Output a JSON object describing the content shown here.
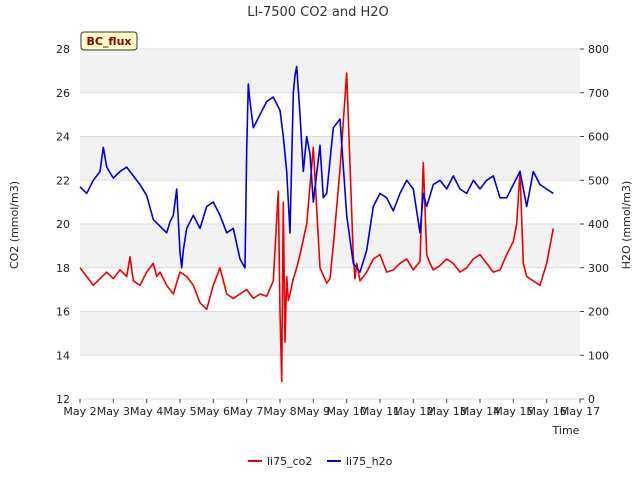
{
  "chart_data": {
    "type": "line",
    "title": "LI-7500 CO2 and H2O",
    "tag": "BC_flux",
    "xlabel": "Time",
    "ylabel_left": "CO2 (mmol/m3)",
    "ylabel_right": "H2O (mmol/m3)",
    "x_ticks": [
      "May 2",
      "May 3",
      "May 4",
      "May 5",
      "May 6",
      "May 7",
      "May 8",
      "May 9",
      "May 10",
      "May 11",
      "May 12",
      "May 13",
      "May 14",
      "May 15",
      "May 16",
      "May 17"
    ],
    "ylim_left": [
      12,
      28
    ],
    "yticks_left": [
      12,
      14,
      16,
      18,
      20,
      22,
      24,
      26,
      28
    ],
    "ylim_right": [
      0,
      800
    ],
    "yticks_right": [
      0,
      100,
      200,
      300,
      400,
      500,
      600,
      700,
      800
    ],
    "grid": true,
    "legend_position": "bottom-center",
    "series": [
      {
        "name": "li75_co2",
        "axis": "left",
        "color": "#ee0000",
        "x": [
          2.0,
          2.2,
          2.4,
          2.6,
          2.8,
          3.0,
          3.2,
          3.4,
          3.5,
          3.6,
          3.8,
          4.0,
          4.2,
          4.3,
          4.4,
          4.6,
          4.8,
          5.0,
          5.2,
          5.4,
          5.6,
          5.8,
          6.0,
          6.2,
          6.4,
          6.6,
          6.8,
          7.0,
          7.2,
          7.4,
          7.6,
          7.8,
          7.95,
          8.0,
          8.05,
          8.1,
          8.15,
          8.2,
          8.25,
          8.3,
          8.4,
          8.5,
          8.6,
          8.8,
          9.0,
          9.2,
          9.4,
          9.5,
          9.6,
          9.8,
          10.0,
          10.2,
          10.25,
          10.3,
          10.4,
          10.6,
          10.8,
          11.0,
          11.2,
          11.4,
          11.6,
          11.8,
          12.0,
          12.2,
          12.3,
          12.4,
          12.5,
          12.6,
          12.8,
          13.0,
          13.2,
          13.4,
          13.6,
          13.8,
          14.0,
          14.2,
          14.4,
          14.6,
          14.8,
          15.0,
          15.1,
          15.2,
          15.3,
          15.4,
          15.6,
          15.8,
          16.0,
          16.2
        ],
        "values": [
          18.0,
          17.6,
          17.2,
          17.5,
          17.8,
          17.5,
          17.9,
          17.6,
          18.5,
          17.4,
          17.2,
          17.8,
          18.2,
          17.6,
          17.8,
          17.2,
          16.8,
          17.8,
          17.6,
          17.2,
          16.4,
          16.1,
          17.2,
          18.0,
          16.8,
          16.6,
          16.8,
          17.0,
          16.6,
          16.8,
          16.7,
          17.4,
          21.5,
          16.0,
          12.8,
          21.0,
          14.6,
          17.6,
          16.5,
          16.8,
          17.5,
          18.0,
          18.6,
          20.0,
          23.5,
          18.0,
          17.3,
          17.5,
          19.0,
          22.5,
          26.9,
          18.5,
          17.5,
          18.2,
          17.4,
          17.8,
          18.4,
          18.6,
          17.8,
          17.9,
          18.2,
          18.4,
          17.9,
          18.3,
          22.8,
          18.6,
          18.2,
          17.9,
          18.1,
          18.4,
          18.2,
          17.8,
          18.0,
          18.4,
          18.6,
          18.2,
          17.8,
          17.9,
          18.6,
          19.2,
          20.0,
          22.4,
          18.2,
          17.6,
          17.4,
          17.2,
          18.2,
          19.8
        ]
      },
      {
        "name": "li75_h2o",
        "axis": "right",
        "color": "#0000dd",
        "x": [
          2.0,
          2.2,
          2.4,
          2.6,
          2.7,
          2.8,
          3.0,
          3.2,
          3.4,
          3.6,
          3.8,
          4.0,
          4.2,
          4.4,
          4.6,
          4.7,
          4.8,
          4.9,
          5.0,
          5.05,
          5.1,
          5.2,
          5.4,
          5.6,
          5.8,
          6.0,
          6.2,
          6.4,
          6.6,
          6.8,
          6.95,
          7.0,
          7.05,
          7.1,
          7.2,
          7.4,
          7.6,
          7.8,
          8.0,
          8.1,
          8.2,
          8.3,
          8.4,
          8.45,
          8.5,
          8.6,
          8.7,
          8.8,
          8.9,
          9.0,
          9.2,
          9.3,
          9.4,
          9.6,
          9.8,
          10.0,
          10.2,
          10.3,
          10.4,
          10.6,
          10.8,
          11.0,
          11.2,
          11.4,
          11.6,
          11.8,
          12.0,
          12.2,
          12.3,
          12.4,
          12.6,
          12.8,
          13.0,
          13.2,
          13.4,
          13.6,
          13.8,
          14.0,
          14.2,
          14.4,
          14.6,
          14.8,
          15.0,
          15.2,
          15.4,
          15.6,
          15.8,
          16.0,
          16.2
        ],
        "values": [
          485,
          470,
          500,
          520,
          575,
          530,
          505,
          520,
          530,
          510,
          490,
          465,
          410,
          395,
          380,
          405,
          420,
          480,
          335,
          300,
          340,
          390,
          420,
          390,
          440,
          450,
          420,
          380,
          390,
          320,
          300,
          570,
          720,
          680,
          620,
          650,
          680,
          690,
          660,
          600,
          520,
          380,
          700,
          740,
          760,
          650,
          520,
          600,
          560,
          450,
          580,
          460,
          470,
          620,
          640,
          420,
          310,
          300,
          290,
          340,
          440,
          470,
          460,
          430,
          470,
          500,
          480,
          380,
          470,
          440,
          490,
          500,
          480,
          510,
          480,
          470,
          500,
          480,
          500,
          510,
          460,
          460,
          490,
          520,
          440,
          520,
          490,
          480,
          470
        ]
      }
    ]
  }
}
